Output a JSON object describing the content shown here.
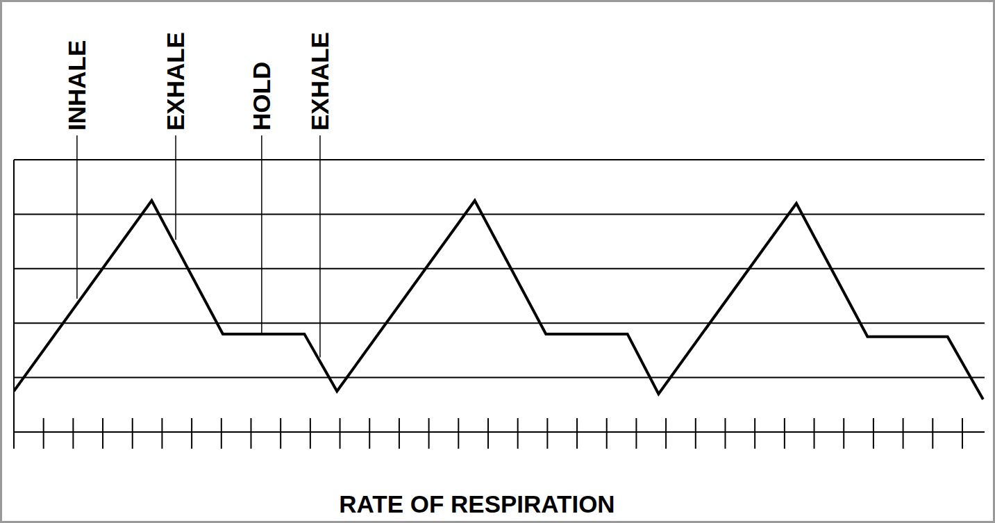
{
  "chart_data": {
    "type": "line",
    "title": "RATE OF RESPIRATION",
    "x": [
      0,
      4.65,
      7.05,
      9.8,
      10.9,
      15.55,
      17.95,
      20.7,
      21.75,
      26.4,
      28.8,
      31.5,
      32.7
    ],
    "values": [
      0.75,
      4.25,
      1.8,
      1.8,
      0.75,
      4.25,
      1.8,
      1.8,
      0.7,
      4.2,
      1.75,
      1.75,
      0.6
    ],
    "color": "#000000",
    "xlim": [
      0,
      32.75
    ],
    "xticks": [
      0,
      1,
      2,
      3,
      4,
      5,
      6,
      7,
      8,
      9,
      10,
      11,
      12,
      13,
      14,
      15,
      16,
      17,
      18,
      19,
      20,
      21,
      22,
      23,
      24,
      25,
      26,
      27,
      28,
      29,
      30,
      31,
      32
    ],
    "ylim": [
      0,
      5
    ],
    "yticks": [
      0,
      1,
      2,
      3,
      4,
      5
    ],
    "grid": true,
    "tick_labels": false,
    "annotations": [
      {
        "text": "INHALE",
        "x": 2.13,
        "y": 2.45
      },
      {
        "text": "EXHALE",
        "x": 5.46,
        "y": 3.53
      },
      {
        "text": "HOLD",
        "x": 8.36,
        "y": 1.8
      },
      {
        "text": "EXHALE",
        "x": 10.33,
        "y": 1.37
      }
    ]
  }
}
